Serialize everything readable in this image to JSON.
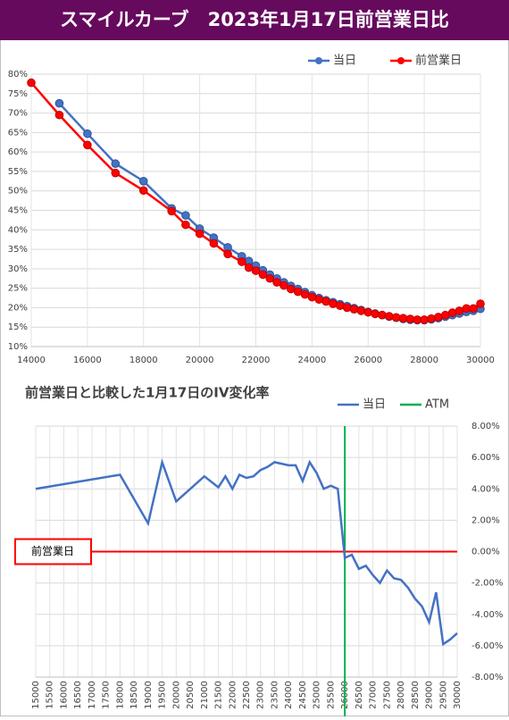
{
  "chart_data": [
    {
      "type": "line",
      "title": "スマイルカーブ　2023年1月17日前営業日比",
      "x": [
        14000,
        15000,
        16000,
        17000,
        18000,
        19000,
        19500,
        20000,
        20500,
        21000,
        21500,
        21750,
        22000,
        22250,
        22500,
        22750,
        23000,
        23250,
        23500,
        23750,
        24000,
        24250,
        24500,
        24750,
        25000,
        25250,
        25500,
        25750,
        26000,
        26250,
        26500,
        26750,
        27000,
        27250,
        27500,
        27750,
        28000,
        28250,
        28500,
        28750,
        29000,
        29250,
        29500,
        29750,
        30000
      ],
      "series": [
        {
          "name": "当日",
          "color": "#4472c4",
          "values": [
            null,
            72.5,
            64.7,
            57,
            52.5,
            45.5,
            43.7,
            40.3,
            38,
            35.5,
            33.2,
            32,
            30.8,
            29.6,
            28.5,
            27.5,
            26.5,
            25.6,
            24.8,
            24,
            23.2,
            22.5,
            21.9,
            21.4,
            20.9,
            20.4,
            19.9,
            19.4,
            18.9,
            18.5,
            18.1,
            17.7,
            17.4,
            17.1,
            16.9,
            16.8,
            16.8,
            17,
            17.3,
            17.7,
            18.1,
            18.5,
            18.9,
            19.2,
            19.7
          ]
        },
        {
          "name": "前営業日",
          "color": "#ff0000",
          "values": [
            77.8,
            69.5,
            61.8,
            54.6,
            50.1,
            44.8,
            41.3,
            39,
            36.5,
            33.8,
            31.8,
            30.3,
            29.5,
            28.5,
            27.5,
            26.5,
            25.7,
            24.8,
            24.1,
            23.4,
            22.7,
            22.1,
            21.6,
            21,
            20.5,
            20,
            19.6,
            19.2,
            18.8,
            18.4,
            18.1,
            17.8,
            17.5,
            17.3,
            17.1,
            16.9,
            16.9,
            17.2,
            17.6,
            18.1,
            18.7,
            19.2,
            19.8,
            19.8,
            21
          ]
        }
      ],
      "xlim": [
        14000,
        30000
      ],
      "xticks": [
        14000,
        16000,
        18000,
        20000,
        22000,
        24000,
        26000,
        28000,
        30000
      ],
      "ylim": [
        10,
        80
      ],
      "yticks": [
        {
          "value": 10,
          "label": "10%"
        },
        {
          "value": 15,
          "label": "15%"
        },
        {
          "value": 20,
          "label": "20%"
        },
        {
          "value": 25,
          "label": "25%"
        },
        {
          "value": 30,
          "label": "30%"
        },
        {
          "value": 35,
          "label": "35%"
        },
        {
          "value": 40,
          "label": "40%"
        },
        {
          "value": 45,
          "label": "45%"
        },
        {
          "value": 50,
          "label": "50%"
        },
        {
          "value": 55,
          "label": "55%"
        },
        {
          "value": 60,
          "label": "60%"
        },
        {
          "value": 65,
          "label": "65%"
        },
        {
          "value": 70,
          "label": "70%"
        },
        {
          "value": 75,
          "label": "75%"
        },
        {
          "value": 80,
          "label": "80%"
        }
      ],
      "grid": true,
      "markers": true,
      "legend": "top-right"
    },
    {
      "type": "line",
      "title": "前営業日と比較した1月17日のIV変化率",
      "x": [
        15000,
        18000,
        19000,
        19500,
        20000,
        21000,
        21500,
        21750,
        22000,
        22250,
        22500,
        22750,
        23000,
        23250,
        23500,
        23750,
        24000,
        24250,
        24500,
        24750,
        25000,
        25250,
        25500,
        25750,
        26000,
        26250,
        26500,
        26750,
        27000,
        27250,
        27500,
        27750,
        28000,
        28250,
        28500,
        28750,
        29000,
        29250,
        29500,
        29750,
        30000
      ],
      "series": [
        {
          "name": "当日",
          "color": "#4472c4",
          "values": [
            4.0,
            4.9,
            1.8,
            5.7,
            3.2,
            4.8,
            4.1,
            4.8,
            4.0,
            4.9,
            4.7,
            4.8,
            5.2,
            5.4,
            5.7,
            5.6,
            5.5,
            5.5,
            4.5,
            5.7,
            5.0,
            4.0,
            4.2,
            4.0,
            -0.4,
            -0.2,
            -1.1,
            -0.9,
            -1.5,
            -2.0,
            -1.2,
            -1.7,
            -1.8,
            -2.3,
            -3.0,
            -3.5,
            -4.5,
            -2.6,
            -5.9,
            -5.6,
            -5.2
          ]
        }
      ],
      "vlines": [
        {
          "name": "ATM",
          "value": 26000,
          "color": "#00b050"
        }
      ],
      "hlines": [
        {
          "label": "前営業日",
          "value": 0,
          "color": "#ff0000"
        }
      ],
      "xlim": [
        15000,
        30000
      ],
      "xticks": [
        15000,
        15500,
        16000,
        16500,
        17000,
        17500,
        18000,
        18500,
        19000,
        19500,
        20000,
        20500,
        21000,
        21500,
        22000,
        22500,
        23000,
        23500,
        24000,
        24500,
        25000,
        25500,
        26000,
        26500,
        27000,
        27500,
        28000,
        28500,
        29000,
        29500,
        30000
      ],
      "ylim": [
        -8,
        8
      ],
      "yticks": [
        {
          "value": 8,
          "label": "8.00%"
        },
        {
          "value": 6,
          "label": "6.00%"
        },
        {
          "value": 4,
          "label": "4.00%"
        },
        {
          "value": 2,
          "label": "2.00%"
        },
        {
          "value": 0,
          "label": "0.00%"
        },
        {
          "value": -2,
          "label": "-2.00%"
        },
        {
          "value": -4,
          "label": "-4.00%"
        },
        {
          "value": -6,
          "label": "-6.00%"
        },
        {
          "value": -8,
          "label": "-8.00%"
        }
      ],
      "grid": true,
      "markers": false,
      "legend": "top-right"
    }
  ]
}
